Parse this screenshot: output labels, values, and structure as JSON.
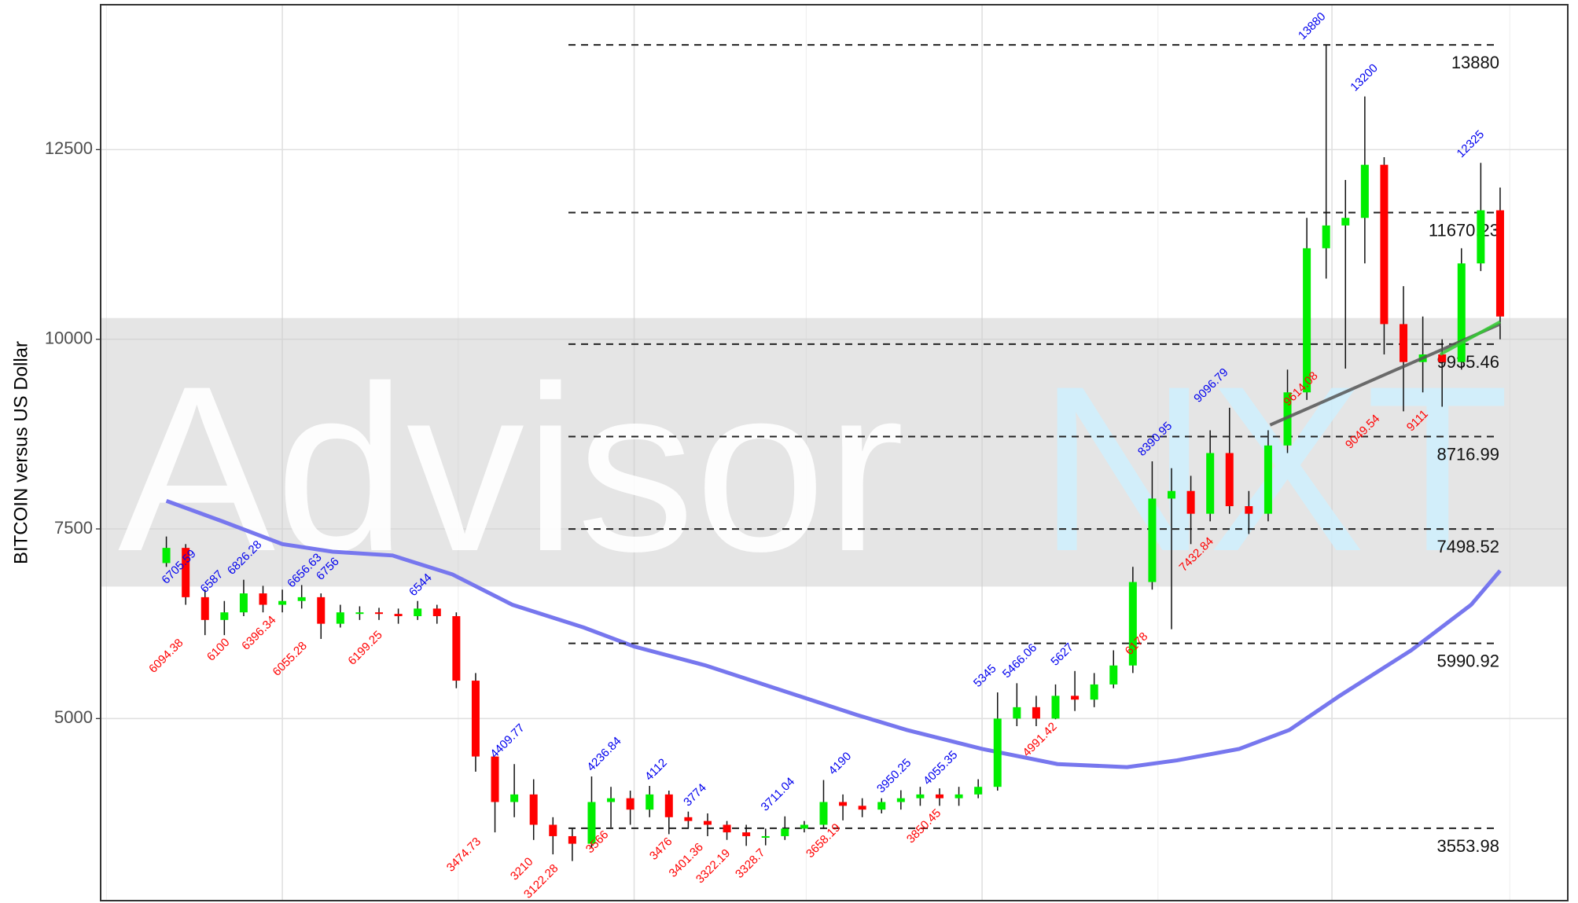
{
  "chart_data": {
    "type": "candlestick",
    "ylabel": "BITCOIN versus US Dollar",
    "watermark": [
      "Advisor",
      "NXT"
    ],
    "ylim": [
      2600,
      14410
    ],
    "yticks": [
      5000,
      7500,
      10000,
      12500
    ],
    "xlim": [
      -3.4,
      72.5
    ],
    "xticks": [
      -3.1,
      6,
      15.1,
      24.2,
      33.1,
      42.2,
      51.3,
      60.3,
      69.5
    ],
    "grid": true,
    "band": [
      6740,
      10280
    ],
    "up_color": "#00ee00",
    "down_color": "#ff0000",
    "open": [
      7050,
      7250,
      6600,
      6300,
      6400,
      6650,
      6500,
      6550,
      6600,
      6250,
      6400,
      6400,
      6380,
      6350,
      6450,
      6350,
      5500,
      4500,
      3900,
      4000,
      3600,
      3450,
      3350,
      3900,
      3950,
      3800,
      4000,
      3700,
      3650,
      3600,
      3500,
      3450,
      3450,
      3550,
      3600,
      3900,
      3850,
      3800,
      3900,
      3950,
      4000,
      3950,
      4000,
      4100,
      5000,
      5150,
      5000,
      5300,
      5250,
      5450,
      5700,
      6800,
      7900,
      8000,
      7700,
      8500,
      7800,
      7700,
      8600,
      9300,
      11200,
      11500,
      11600,
      12300,
      10200,
      9700,
      9800,
      9700,
      11000,
      11700
    ],
    "high": [
      7400,
      7300,
      6700,
      6550,
      6830,
      6750,
      6700,
      6760,
      6650,
      6500,
      6480,
      6460,
      6450,
      6550,
      6500,
      6400,
      5600,
      4500,
      4400,
      4200,
      3700,
      3550,
      4237,
      4100,
      4050,
      4112,
      4050,
      3774,
      3750,
      3650,
      3600,
      3550,
      3711,
      3650,
      4190,
      4000,
      3950,
      3950,
      4055,
      4100,
      4080,
      4100,
      4200,
      5345,
      5466,
      5300,
      5450,
      5627,
      5600,
      5900,
      7000,
      8391,
      8300,
      8200,
      8800,
      9097,
      8000,
      8800,
      9600,
      11600,
      13880,
      12100,
      13200,
      12400,
      10700,
      10300,
      10000,
      11200,
      12325,
      12000
    ],
    "low": [
      7000,
      6500,
      6100,
      6100,
      6350,
      6400,
      6400,
      6450,
      6050,
      6200,
      6300,
      6300,
      6250,
      6300,
      6250,
      5400,
      4300,
      3500,
      3700,
      3400,
      3210,
      3122,
      3300,
      3566,
      3600,
      3700,
      3476,
      3550,
      3450,
      3401,
      3322,
      3329,
      3400,
      3500,
      3550,
      3658,
      3700,
      3750,
      3800,
      3850,
      3850,
      3850,
      3950,
      4050,
      4900,
      4900,
      4991,
      5100,
      5150,
      5400,
      5600,
      6700,
      6178,
      7300,
      7600,
      7700,
      7433,
      7600,
      8500,
      9200,
      10800,
      9614,
      11000,
      9800,
      9050,
      9300,
      9111,
      9600,
      10900,
      10000
    ],
    "close": [
      7250,
      6600,
      6300,
      6400,
      6650,
      6500,
      6550,
      6600,
      6250,
      6400,
      6400,
      6380,
      6350,
      6450,
      6350,
      5500,
      4500,
      3900,
      4000,
      3600,
      3450,
      3350,
      3900,
      3950,
      3800,
      4000,
      3700,
      3650,
      3600,
      3500,
      3450,
      3450,
      3550,
      3600,
      3900,
      3850,
      3800,
      3900,
      3950,
      4000,
      3950,
      4000,
      4100,
      5000,
      5150,
      5000,
      5300,
      5250,
      5450,
      5700,
      6800,
      7900,
      8000,
      7700,
      8500,
      7800,
      7700,
      8600,
      9300,
      11200,
      11500,
      11600,
      12300,
      10200,
      9700,
      9800,
      9700,
      11000,
      11700,
      10300
    ],
    "moving_average": {
      "color": "#7777ee",
      "x": [
        0,
        2.9,
        6,
        8.6,
        11.7,
        14.8,
        17.9,
        21.6,
        24.2,
        27.9,
        31.5,
        35.7,
        38.3,
        42.2,
        46.1,
        49.7,
        52.3,
        55.5,
        58.1,
        60.7,
        64.4,
        67.5,
        69
      ],
      "values": [
        7870,
        7600,
        7300,
        7200,
        7150,
        6900,
        6500,
        6200,
        5950,
        5700,
        5400,
        5050,
        4850,
        4600,
        4400,
        4360,
        4450,
        4600,
        4850,
        5300,
        5900,
        6500,
        6950
      ]
    },
    "trendlines": [
      {
        "color": "#555555",
        "x": [
          57.1,
          69
        ],
        "values": [
          8870,
          10200
        ]
      },
      {
        "color": "#33cc33",
        "x": [
          65.9,
          69
        ],
        "values": [
          9800,
          10230
        ]
      }
    ],
    "levels": [
      13880,
      11670.23,
      9935.46,
      8716.99,
      7498.52,
      5990.92,
      3553.98
    ],
    "high_labels": [
      {
        "x": 0,
        "value": 6705.59
      },
      {
        "x": 2,
        "value": 6587
      },
      {
        "x": 3.4,
        "value": 6826.28
      },
      {
        "x": 6.5,
        "value": 6656.63
      },
      {
        "x": 8,
        "value": 6756
      },
      {
        "x": 12.8,
        "value": 6544
      },
      {
        "x": 17,
        "value": 4409.77
      },
      {
        "x": 22,
        "value": 4236.84
      },
      {
        "x": 25,
        "value": 4112
      },
      {
        "x": 27,
        "value": 3774
      },
      {
        "x": 31,
        "value": 3711.04
      },
      {
        "x": 34.5,
        "value": 4190
      },
      {
        "x": 37,
        "value": 3950.25
      },
      {
        "x": 39.4,
        "value": 4055.35
      },
      {
        "x": 42,
        "value": 5345
      },
      {
        "x": 43.5,
        "value": 5466.06
      },
      {
        "x": 46,
        "value": 5627
      },
      {
        "x": 50.5,
        "value": 8390.95
      },
      {
        "x": 53.4,
        "value": 9096.79
      },
      {
        "x": 58.8,
        "value": 13880
      },
      {
        "x": 61.5,
        "value": 13200
      },
      {
        "x": 67,
        "value": 12325
      }
    ],
    "low_labels": [
      {
        "x": 0.9,
        "value": 6094.38
      },
      {
        "x": 3.3,
        "value": 6100
      },
      {
        "x": 5.7,
        "value": 6396.34
      },
      {
        "x": 7.3,
        "value": 6055.28
      },
      {
        "x": 11.2,
        "value": 6199.25
      },
      {
        "x": 16.3,
        "value": 3474.73
      },
      {
        "x": 19,
        "value": 3210
      },
      {
        "x": 20.3,
        "value": 3122.28
      },
      {
        "x": 22.9,
        "value": 3566
      },
      {
        "x": 26.2,
        "value": 3476
      },
      {
        "x": 27.8,
        "value": 3401.36
      },
      {
        "x": 29.2,
        "value": 3322.19
      },
      {
        "x": 31,
        "value": 3328.7
      },
      {
        "x": 34.9,
        "value": 3658.19
      },
      {
        "x": 40.1,
        "value": 3850.45
      },
      {
        "x": 46.1,
        "value": 4991.42
      },
      {
        "x": 50.8,
        "value": 6178
      },
      {
        "x": 54.2,
        "value": 7432.84
      },
      {
        "x": 59.6,
        "value": 9614.08
      },
      {
        "x": 62.8,
        "value": 9049.54
      },
      {
        "x": 65.3,
        "value": 9111
      }
    ]
  }
}
